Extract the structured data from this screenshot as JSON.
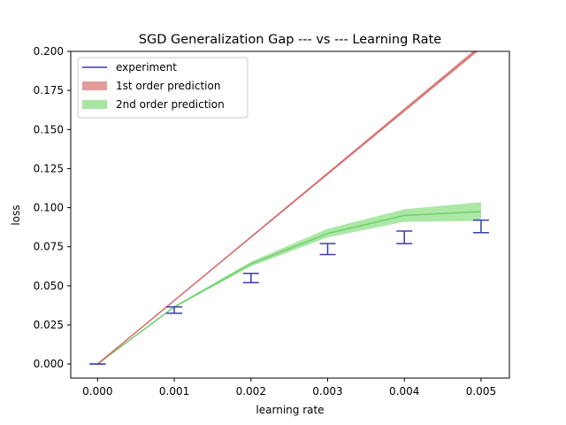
{
  "chart_data": {
    "type": "line",
    "title": "SGD Generalization Gap --- vs --- Learning Rate",
    "xlabel": "learning rate",
    "ylabel": "loss",
    "xlim": [
      -0.00035,
      0.00537
    ],
    "ylim": [
      -0.009,
      0.2
    ],
    "xticks": [
      0.0,
      0.001,
      0.002,
      0.003,
      0.004,
      0.005
    ],
    "xtick_labels": [
      "0.000",
      "0.001",
      "0.002",
      "0.003",
      "0.004",
      "0.005"
    ],
    "yticks": [
      0.0,
      0.025,
      0.05,
      0.075,
      0.1,
      0.125,
      0.15,
      0.175,
      0.2
    ],
    "ytick_labels": [
      "0.000",
      "0.025",
      "0.050",
      "0.075",
      "0.100",
      "0.125",
      "0.150",
      "0.175",
      "0.200"
    ],
    "legend_position": "top-left",
    "series": [
      {
        "name": "experiment",
        "kind": "errorbar",
        "color": "#3b3bb3",
        "x": [
          0.0,
          0.001,
          0.002,
          0.003,
          0.004,
          0.005
        ],
        "y": [
          0.0,
          0.0345,
          0.055,
          0.0735,
          0.081,
          0.088
        ],
        "err_low": [
          0.0,
          0.0325,
          0.052,
          0.07,
          0.077,
          0.084
        ],
        "err_high": [
          0.0,
          0.0365,
          0.058,
          0.077,
          0.085,
          0.092
        ]
      },
      {
        "name": "1st order prediction",
        "kind": "band",
        "color": "#d46a6a",
        "fill": "#e29a9a",
        "x": [
          0.0,
          0.005
        ],
        "y": [
          0.0,
          0.203
        ],
        "lower": [
          0.0,
          0.2015
        ],
        "upper": [
          0.0,
          0.2045
        ]
      },
      {
        "name": "2nd order prediction",
        "kind": "band",
        "color": "#6ecf6e",
        "fill": "#a6e6a0",
        "x": [
          0.0,
          0.001,
          0.002,
          0.003,
          0.004,
          0.005
        ],
        "y": [
          0.0,
          0.0365,
          0.064,
          0.0835,
          0.095,
          0.0975
        ],
        "lower": [
          0.0,
          0.036,
          0.0625,
          0.081,
          0.091,
          0.0915
        ],
        "upper": [
          0.0,
          0.037,
          0.0655,
          0.0865,
          0.099,
          0.1035
        ]
      }
    ]
  }
}
